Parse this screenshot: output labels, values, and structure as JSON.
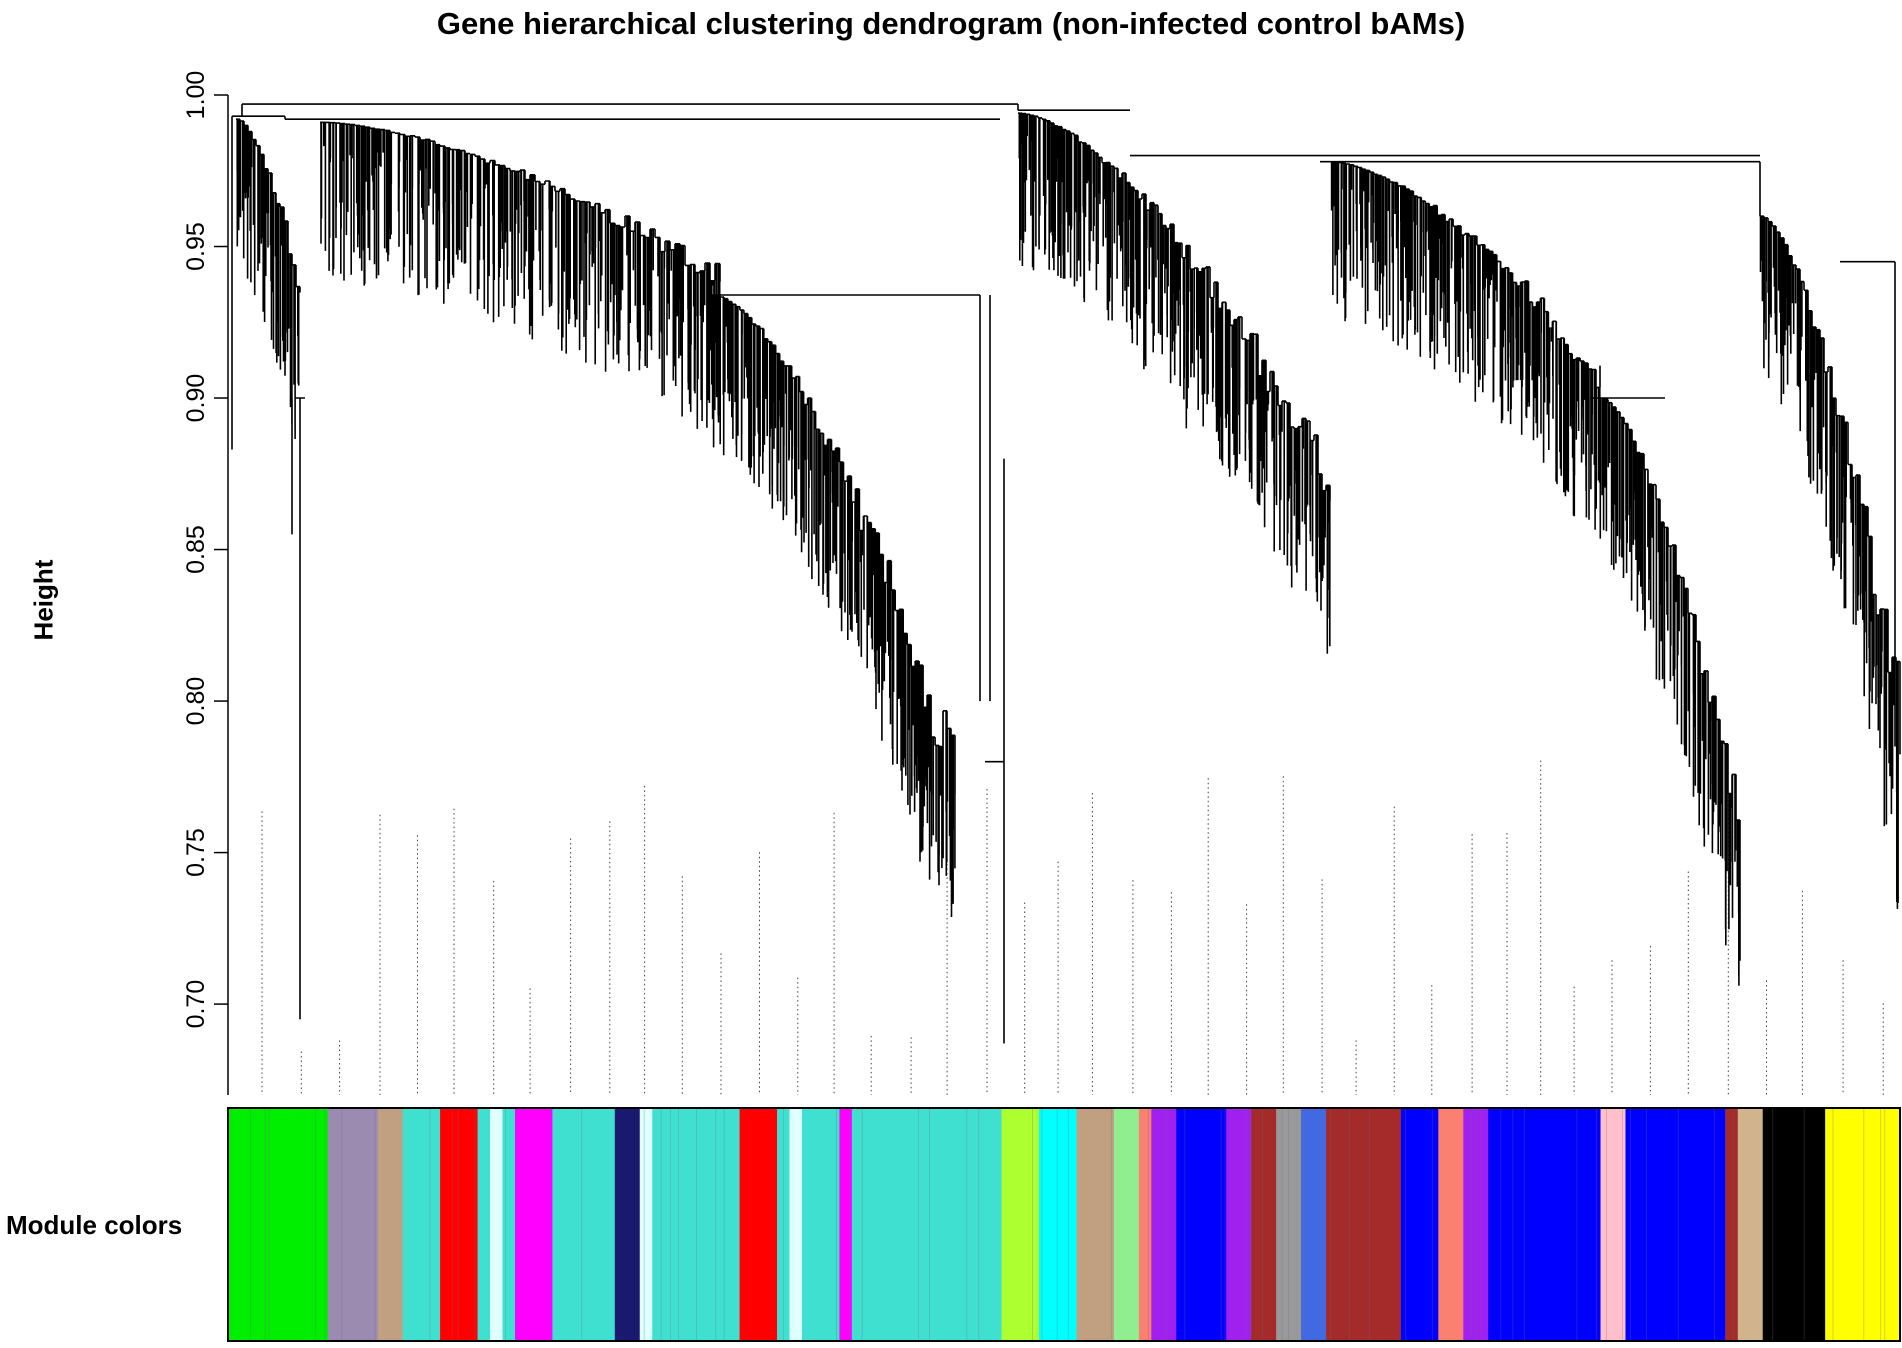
{
  "chart_data": {
    "type": "dendrogram",
    "title": "Gene hierarchical clustering dendrogram (non-infected control bAMs)",
    "ylabel": "Height",
    "xlabel": "",
    "ylim": [
      0.67,
      1.0
    ],
    "yticks": [
      0.7,
      0.75,
      0.8,
      0.85,
      0.9,
      0.95,
      1.0
    ],
    "ytick_labels": [
      "0.70",
      "0.75",
      "0.80",
      "0.85",
      "0.90",
      "0.95",
      "1.00"
    ],
    "color_bar_label": "Module colors",
    "module_color_blocks": [
      {
        "color": "#00ee00",
        "width": 8
      },
      {
        "color": "#9b8bb0",
        "width": 4
      },
      {
        "color": "#c0a080",
        "width": 2
      },
      {
        "color": "#40e0d0",
        "width": 3
      },
      {
        "color": "#ff0000",
        "width": 3
      },
      {
        "color": "#40e0d0",
        "width": 1
      },
      {
        "color": "#e0ffff",
        "width": 1
      },
      {
        "color": "#40e0d0",
        "width": 1
      },
      {
        "color": "#ff00ff",
        "width": 3
      },
      {
        "color": "#40e0d0",
        "width": 5
      },
      {
        "color": "#191970",
        "width": 2
      },
      {
        "color": "#e0ffff",
        "width": 1
      },
      {
        "color": "#40e0d0",
        "width": 7
      },
      {
        "color": "#ff0000",
        "width": 3
      },
      {
        "color": "#40e0d0",
        "width": 1
      },
      {
        "color": "#e0ffff",
        "width": 1
      },
      {
        "color": "#40e0d0",
        "width": 3
      },
      {
        "color": "#ff00ff",
        "width": 1
      },
      {
        "color": "#40e0d0",
        "width": 12
      },
      {
        "color": "#adff2f",
        "width": 3
      },
      {
        "color": "#00ffff",
        "width": 3
      },
      {
        "color": "#c0a080",
        "width": 3
      },
      {
        "color": "#90ee90",
        "width": 2
      },
      {
        "color": "#fa8072",
        "width": 1
      },
      {
        "color": "#a020f0",
        "width": 2
      },
      {
        "color": "#0000ff",
        "width": 4
      },
      {
        "color": "#a020f0",
        "width": 2
      },
      {
        "color": "#a52a2a",
        "width": 2
      },
      {
        "color": "#999999",
        "width": 2
      },
      {
        "color": "#4169e1",
        "width": 2
      },
      {
        "color": "#a52a2a",
        "width": 6
      },
      {
        "color": "#0000ff",
        "width": 3
      },
      {
        "color": "#fa8072",
        "width": 2
      },
      {
        "color": "#a020f0",
        "width": 2
      },
      {
        "color": "#0000ff",
        "width": 9
      },
      {
        "color": "#ffc0cb",
        "width": 2
      },
      {
        "color": "#0000ff",
        "width": 8
      },
      {
        "color": "#a52a2a",
        "width": 1
      },
      {
        "color": "#d2b48c",
        "width": 2
      },
      {
        "color": "#000000",
        "width": 5
      },
      {
        "color": "#ffff00",
        "width": 6
      }
    ]
  }
}
